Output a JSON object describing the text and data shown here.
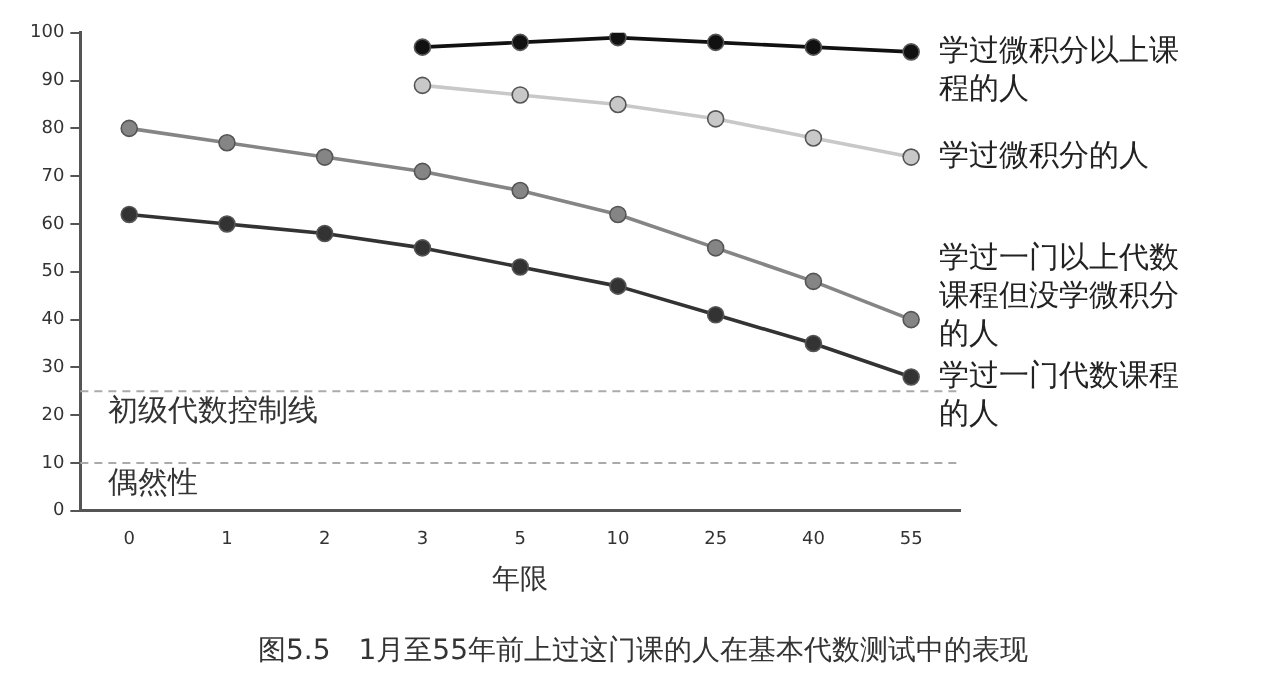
{
  "chart_data": {
    "type": "line",
    "xlabel": "年限",
    "annotations": [
      "图5.5　1月至55年前上过这门课的人在基本代数测试中的表现"
    ],
    "categories": [
      "0",
      "1",
      "2",
      "3",
      "5",
      "10",
      "25",
      "40",
      "55"
    ],
    "series": [
      {
        "name": "学过微积分以上课程的人",
        "color": "#111111",
        "values": [
          null,
          null,
          null,
          97,
          98,
          99,
          98,
          97,
          96
        ]
      },
      {
        "name": "学过微积分的人",
        "color": "#c8c8c8",
        "values": [
          null,
          null,
          null,
          89,
          87,
          85,
          82,
          78,
          74
        ]
      },
      {
        "name": "学过一门以上代数课程但没学微积分的人",
        "color": "#858585",
        "values": [
          80,
          77,
          74,
          71,
          67,
          62,
          55,
          48,
          40
        ]
      },
      {
        "name": "学过一门代数课程的人",
        "color": "#333333",
        "values": [
          62,
          60,
          58,
          55,
          51,
          47,
          41,
          35,
          28
        ]
      }
    ],
    "ylim": [
      0,
      100
    ],
    "yticks": [
      0,
      10,
      20,
      30,
      40,
      50,
      60,
      70,
      80,
      90,
      100
    ],
    "ref_lines": [
      {
        "axis": "y",
        "value": 25,
        "label": "初级代数控制线",
        "color": "#aaaaaa",
        "line_style": "dashed"
      },
      {
        "axis": "y",
        "value": 10,
        "label": "偶然性",
        "color": "#aaaaaa",
        "line_style": "dashed"
      }
    ],
    "grid": false,
    "legend": false,
    "marker": "circle",
    "line_style": "solid"
  }
}
